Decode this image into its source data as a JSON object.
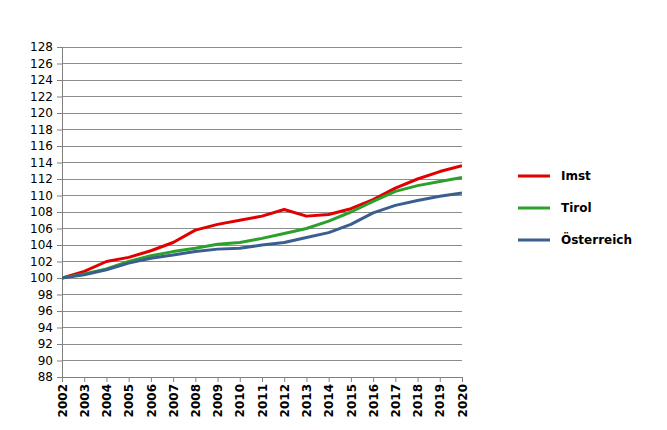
{
  "chart_data": {
    "type": "line",
    "categories": [
      "2002",
      "2003",
      "2004",
      "2005",
      "2006",
      "2007",
      "2008",
      "2009",
      "2010",
      "2011",
      "2012",
      "2013",
      "2014",
      "2015",
      "2016",
      "2017",
      "2018",
      "2019",
      "2020"
    ],
    "series": [
      {
        "name": "Imst",
        "color": "#e00000",
        "values": [
          100,
          100.8,
          102.0,
          102.5,
          103.3,
          104.3,
          105.8,
          106.5,
          107.0,
          107.5,
          108.3,
          107.5,
          107.7,
          108.4,
          109.5,
          110.9,
          112.0,
          112.9,
          113.6
        ]
      },
      {
        "name": "Tirol",
        "color": "#2ca02c",
        "values": [
          100,
          100.5,
          101.1,
          102.0,
          102.7,
          103.2,
          103.6,
          104.1,
          104.3,
          104.8,
          105.4,
          106.0,
          106.9,
          108.0,
          109.3,
          110.5,
          111.2,
          111.7,
          112.2
        ]
      },
      {
        "name": "Österreich",
        "color": "#3a5f8f",
        "values": [
          100,
          100.4,
          101.0,
          101.8,
          102.4,
          102.8,
          103.2,
          103.5,
          103.6,
          104.0,
          104.3,
          104.9,
          105.5,
          106.5,
          107.9,
          108.8,
          109.4,
          109.9,
          110.3
        ]
      }
    ],
    "ylim": [
      88,
      128
    ],
    "yticks": [
      88,
      90,
      92,
      94,
      96,
      98,
      100,
      102,
      104,
      106,
      108,
      110,
      112,
      114,
      116,
      118,
      120,
      122,
      124,
      126,
      128
    ],
    "grid": true,
    "legend": "right"
  }
}
